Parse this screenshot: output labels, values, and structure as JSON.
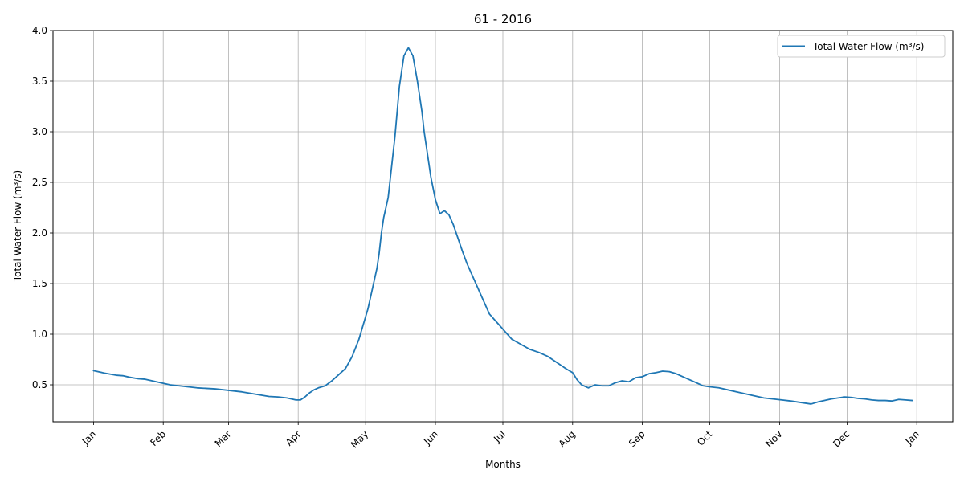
{
  "chart_data": {
    "type": "line",
    "title": "61 - 2016",
    "xlabel": "Months",
    "ylabel": "Total Water Flow (m³/s)",
    "xlim": [
      -18,
      382
    ],
    "ylim": [
      0.135,
      4.0
    ],
    "grid": true,
    "legend_position": "top-right",
    "x_ticks": [
      {
        "label": "Jan",
        "day": 0
      },
      {
        "label": "Feb",
        "day": 31
      },
      {
        "label": "Mar",
        "day": 60
      },
      {
        "label": "Apr",
        "day": 91
      },
      {
        "label": "May",
        "day": 121
      },
      {
        "label": "Jun",
        "day": 152
      },
      {
        "label": "Jul",
        "day": 182
      },
      {
        "label": "Aug",
        "day": 213
      },
      {
        "label": "Sep",
        "day": 244
      },
      {
        "label": "Oct",
        "day": 274
      },
      {
        "label": "Nov",
        "day": 305
      },
      {
        "label": "Dec",
        "day": 335
      },
      {
        "label": "Jan",
        "day": 366
      }
    ],
    "y_ticks": [
      "0.5",
      "1.0",
      "1.5",
      "2.0",
      "2.5",
      "3.0",
      "3.5",
      "4.0"
    ],
    "series": [
      {
        "name": "Total Water Flow (m³/s)",
        "color": "#1f77b4",
        "x": [
          0,
          5,
          10,
          13,
          16,
          20,
          23,
          26,
          30,
          34,
          38,
          42,
          46,
          50,
          54,
          58,
          62,
          66,
          70,
          74,
          78,
          82,
          86,
          88,
          90,
          92,
          94,
          96,
          98,
          100,
          103,
          106,
          109,
          112,
          115,
          118,
          120,
          122,
          124,
          126,
          127,
          128,
          129,
          130,
          131,
          132,
          134,
          136,
          138,
          140,
          142,
          144,
          146,
          147,
          148,
          149,
          150,
          152,
          154,
          156,
          158,
          160,
          162,
          164,
          166,
          168,
          170,
          172,
          174,
          176,
          178,
          180,
          182,
          184,
          186,
          190,
          194,
          198,
          202,
          206,
          210,
          213,
          215,
          217,
          220,
          223,
          226,
          229,
          232,
          235,
          238,
          241,
          244,
          247,
          250,
          253,
          256,
          259,
          262,
          265,
          268,
          271,
          274,
          278,
          282,
          286,
          290,
          294,
          298,
          302,
          306,
          310,
          313,
          316,
          319,
          322,
          325,
          328,
          331,
          334,
          337,
          340,
          343,
          346,
          349,
          352,
          355,
          358,
          361,
          364
        ],
        "y": [
          0.64,
          0.615,
          0.595,
          0.59,
          0.575,
          0.56,
          0.555,
          0.54,
          0.52,
          0.5,
          0.49,
          0.48,
          0.47,
          0.465,
          0.46,
          0.45,
          0.44,
          0.43,
          0.415,
          0.4,
          0.385,
          0.38,
          0.37,
          0.36,
          0.35,
          0.35,
          0.38,
          0.42,
          0.45,
          0.47,
          0.49,
          0.54,
          0.6,
          0.66,
          0.78,
          0.95,
          1.1,
          1.25,
          1.45,
          1.65,
          1.8,
          2.0,
          2.15,
          2.25,
          2.35,
          2.55,
          2.95,
          3.45,
          3.75,
          3.83,
          3.75,
          3.5,
          3.2,
          3.0,
          2.85,
          2.7,
          2.55,
          2.33,
          2.19,
          2.22,
          2.18,
          2.08,
          1.95,
          1.82,
          1.7,
          1.6,
          1.5,
          1.4,
          1.3,
          1.2,
          1.15,
          1.1,
          1.05,
          1.0,
          0.95,
          0.9,
          0.85,
          0.82,
          0.78,
          0.72,
          0.66,
          0.62,
          0.55,
          0.5,
          0.47,
          0.5,
          0.49,
          0.49,
          0.52,
          0.54,
          0.53,
          0.57,
          0.58,
          0.61,
          0.62,
          0.635,
          0.63,
          0.61,
          0.58,
          0.55,
          0.52,
          0.49,
          0.48,
          0.47,
          0.45,
          0.43,
          0.41,
          0.39,
          0.37,
          0.36,
          0.35,
          0.34,
          0.33,
          0.32,
          0.31,
          0.33,
          0.345,
          0.36,
          0.37,
          0.38,
          0.375,
          0.365,
          0.36,
          0.35,
          0.345,
          0.345,
          0.34,
          0.355,
          0.35,
          0.345
        ]
      }
    ]
  }
}
